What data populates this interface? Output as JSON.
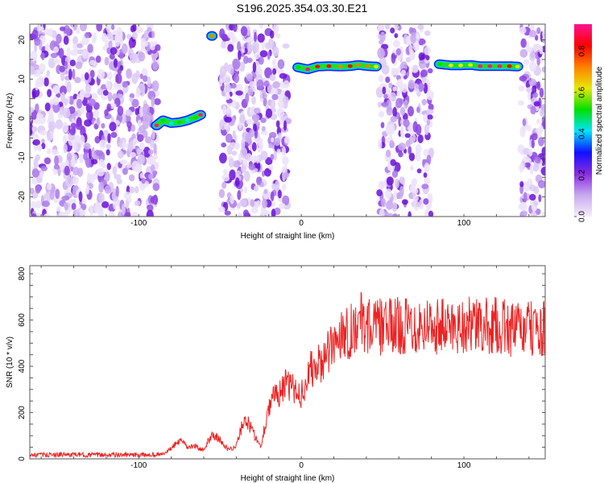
{
  "title": "S196.2025.354.03.30.E21",
  "chart_data": [
    {
      "type": "heatmap",
      "xlabel": "Height of straight line (km)",
      "ylabel": "Frequency (Hz)",
      "xlim": [
        -167,
        150
      ],
      "ylim": [
        -25,
        24
      ],
      "xticks": [
        -100,
        0,
        100
      ],
      "yticks": [
        -20,
        -10,
        0,
        10,
        20
      ],
      "colorbar": {
        "label": "Normalized spectral amplitude",
        "range": [
          0,
          0.93
        ],
        "ticks": [
          "0.0",
          "0.2",
          "0.4",
          "0.6",
          "0.8"
        ],
        "colors": [
          "#f4eefc",
          "#c9a9f0",
          "#8a2be2",
          "#1010ff",
          "#00e5ff",
          "#00e000",
          "#e8e800",
          "#ff8000",
          "#ff0000",
          "#ff1493"
        ]
      },
      "noise_regions_km": [
        [
          -167,
          -88
        ],
        [
          -50,
          -8
        ],
        [
          48,
          80
        ],
        [
          135,
          150
        ]
      ],
      "signal_tracks": [
        {
          "name": "track-1",
          "points": [
            [
              -89,
              -1.8,
              0.9
            ],
            [
              -85,
              -0.5,
              0.5
            ],
            [
              -80,
              -1.2,
              0.45
            ],
            [
              -75,
              -1.0,
              0.5
            ],
            [
              -70,
              -0.5,
              0.45
            ],
            [
              -65,
              0.3,
              0.5
            ],
            [
              -62,
              0.9,
              0.9
            ]
          ]
        },
        {
          "name": "track-2",
          "points": [
            [
              -55,
              21,
              0.7
            ]
          ]
        },
        {
          "name": "track-3",
          "points": [
            [
              -2,
              13,
              0.5
            ],
            [
              4,
              12.5,
              0.9
            ],
            [
              10,
              13.2,
              0.8
            ],
            [
              17,
              13.3,
              0.8
            ],
            [
              24,
              13.2,
              0.7
            ],
            [
              30,
              13.3,
              0.85
            ],
            [
              35,
              13.6,
              0.7
            ],
            [
              41,
              13.3,
              0.75
            ],
            [
              46,
              13.2,
              0.6
            ]
          ]
        },
        {
          "name": "track-4",
          "points": [
            [
              85,
              13.8,
              0.5
            ],
            [
              92,
              13.5,
              0.6
            ],
            [
              98,
              13.5,
              0.6
            ],
            [
              104,
              13.6,
              0.6
            ],
            [
              110,
              13.3,
              0.9
            ],
            [
              116,
              13.3,
              0.95
            ],
            [
              122,
              13.3,
              0.9
            ],
            [
              128,
              13.3,
              0.8
            ],
            [
              133,
              13.2,
              0.6
            ]
          ]
        }
      ]
    },
    {
      "type": "line",
      "xlabel": "Height of straight line (km)",
      "ylabel": "SNR (10 * v/v)",
      "xlim": [
        -167,
        150
      ],
      "ylim": [
        0,
        835
      ],
      "xticks": [
        -100,
        0,
        100
      ],
      "yticks": [
        0,
        200,
        400,
        600,
        800
      ],
      "color": "#ee2222",
      "series": [
        {
          "name": "SNR",
          "x": [
            -167,
            -160,
            -150,
            -140,
            -130,
            -120,
            -110,
            -100,
            -90,
            -85,
            -80,
            -75,
            -70,
            -65,
            -60,
            -55,
            -50,
            -45,
            -40,
            -35,
            -30,
            -25,
            -20,
            -15,
            -10,
            -5,
            0,
            5,
            10,
            15,
            20,
            25,
            30,
            35,
            40,
            45,
            50,
            60,
            70,
            80,
            90,
            100,
            110,
            120,
            130,
            140,
            150
          ],
          "y": [
            15,
            17,
            18,
            18,
            17,
            18,
            16,
            17,
            18,
            20,
            45,
            80,
            50,
            55,
            35,
            110,
            80,
            40,
            55,
            180,
            120,
            50,
            230,
            280,
            320,
            300,
            280,
            380,
            400,
            440,
            490,
            560,
            550,
            600,
            580,
            570,
            570,
            575,
            580,
            580,
            570,
            580,
            570,
            575,
            560,
            560,
            560
          ]
        }
      ]
    }
  ]
}
